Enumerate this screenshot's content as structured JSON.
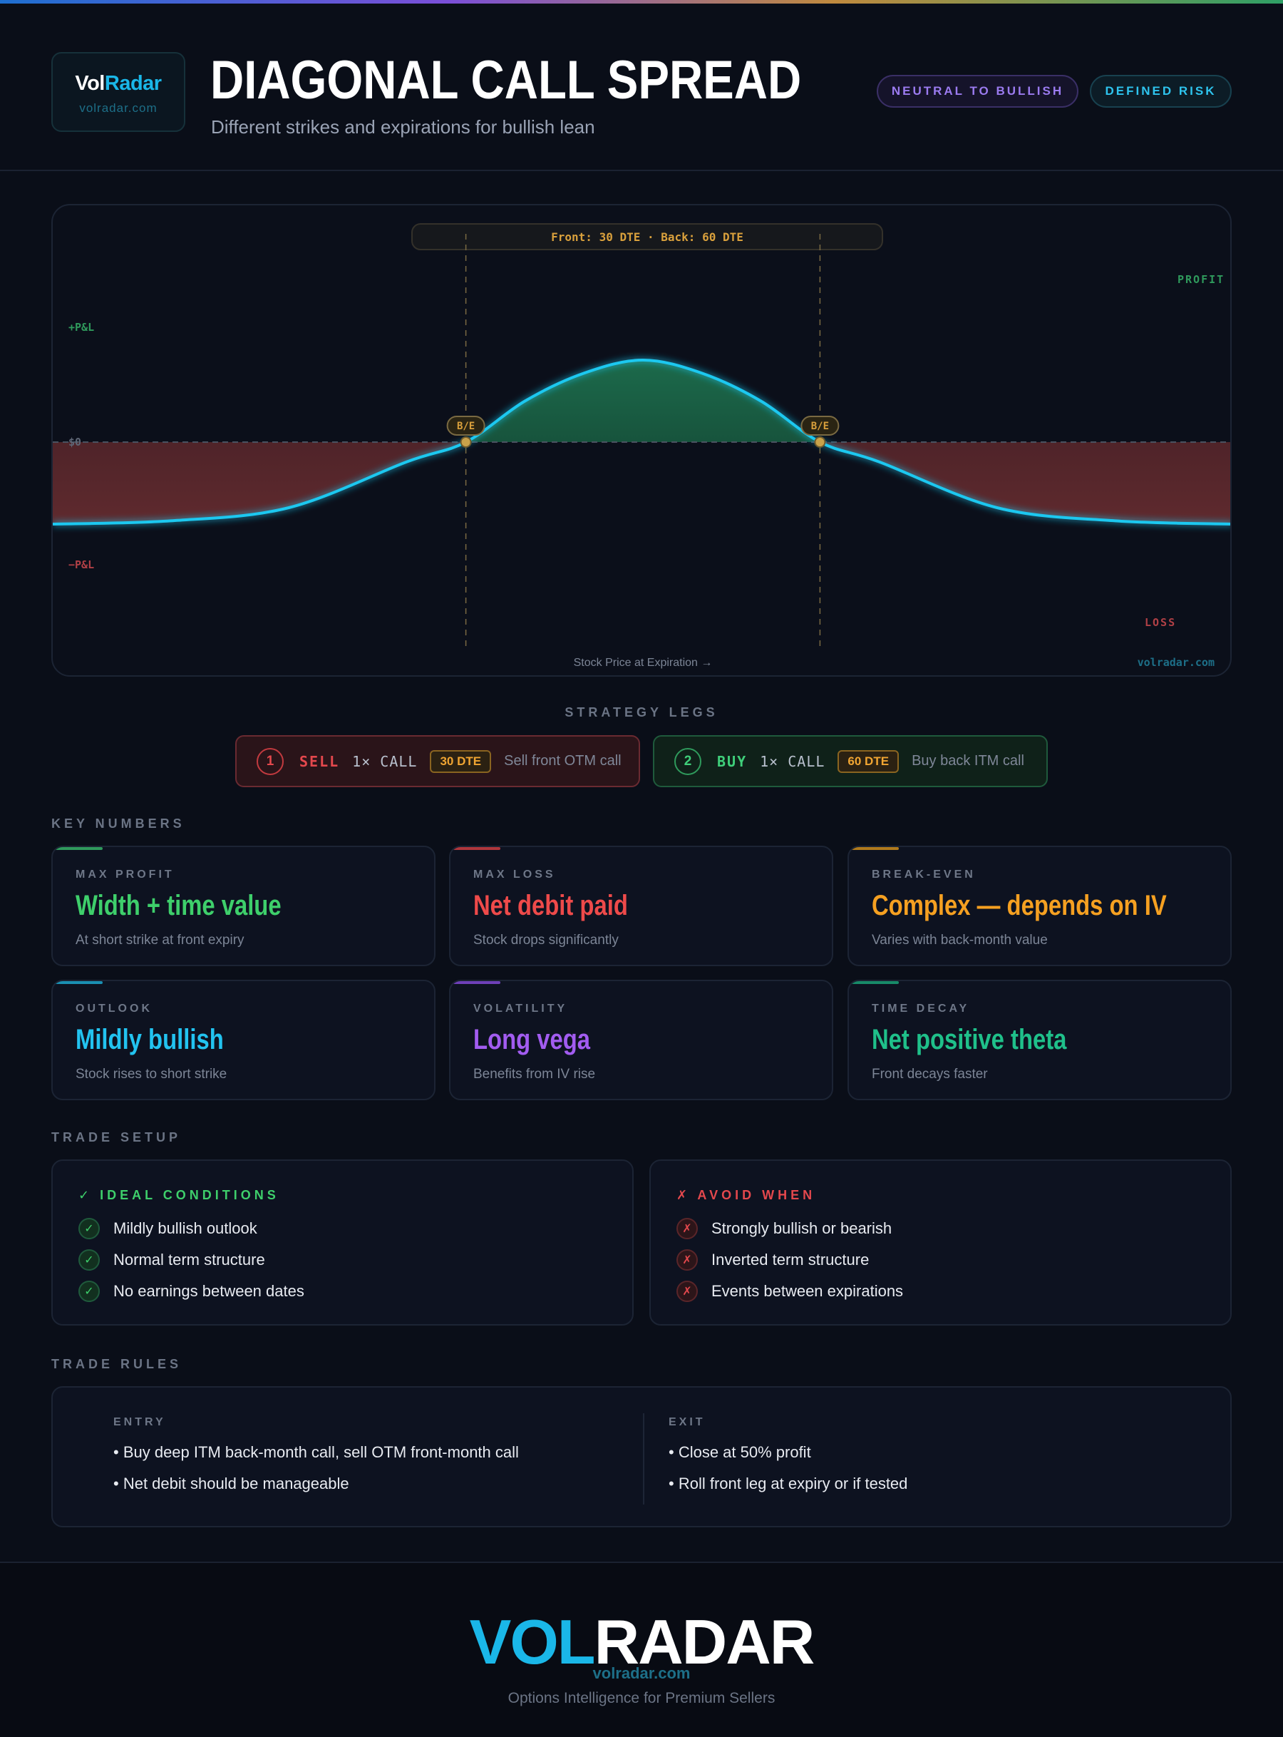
{
  "brand": {
    "logo_part1": "Vol",
    "logo_part2": "Radar",
    "url": "volradar.com"
  },
  "header": {
    "title": "DIAGONAL CALL SPREAD",
    "subtitle": "Different strikes and expirations for bullish lean",
    "tags": [
      "NEUTRAL TO BULLISH",
      "DEFINED RISK"
    ]
  },
  "chart": {
    "expiry_label": "Front: 30 DTE · Back: 60 DTE",
    "y_plus": "+P&L",
    "y_zero": "$0",
    "y_minus": "−P&L",
    "profit": "PROFIT",
    "loss": "LOSS",
    "breakeven_marker": "B/E",
    "x_axis": "Stock Price at Expiration →",
    "watermark": "volradar.com"
  },
  "chart_data": {
    "type": "area",
    "shape": "bell-shaped P&L curve peaking near the short strike",
    "x": [
      0.0,
      0.1,
      0.2,
      0.3,
      0.35,
      0.4,
      0.45,
      0.5,
      0.55,
      0.6,
      0.65,
      0.7,
      0.8,
      0.9,
      1.0
    ],
    "y": [
      -0.5,
      -0.48,
      -0.4,
      -0.12,
      0.0,
      0.25,
      0.42,
      0.5,
      0.42,
      0.25,
      0.0,
      -0.12,
      -0.4,
      -0.48,
      -0.5
    ],
    "breakevens": [
      0.35,
      0.65
    ],
    "zero_line": 0,
    "colors": {
      "curve": "#1ec8f0",
      "profit_fill": "#1b5a42",
      "loss_fill": "#5a2529",
      "breakeven": "#c9a24a"
    }
  },
  "legs_section": "STRATEGY LEGS",
  "legs": [
    {
      "num": "1",
      "action": "SELL",
      "type": "1× CALL",
      "dte": "30 DTE",
      "desc": "Sell front OTM call"
    },
    {
      "num": "2",
      "action": "BUY",
      "type": "1× CALL",
      "dte": "60 DTE",
      "desc": "Buy back ITM call"
    }
  ],
  "key_section": "KEY NUMBERS",
  "key_numbers": [
    {
      "label": "MAX PROFIT",
      "value": "Width + time value",
      "sub": "At short strike at front expiry",
      "color": "#3ecf6b"
    },
    {
      "label": "MAX LOSS",
      "value": "Net debit paid",
      "sub": "Stock drops significantly",
      "color": "#ee4a4a"
    },
    {
      "label": "BREAK-EVEN",
      "value": "Complex — depends on IV",
      "sub": "Varies with back-month value",
      "color": "#f5a021"
    },
    {
      "label": "OUTLOOK",
      "value": "Mildly bullish",
      "sub": "Stock rises to short strike",
      "color": "#22c3f0"
    },
    {
      "label": "VOLATILITY",
      "value": "Long vega",
      "sub": "Benefits from IV rise",
      "color": "#a25cf0"
    },
    {
      "label": "TIME DECAY",
      "value": "Net positive theta",
      "sub": "Front decays faster",
      "color": "#1fc08a"
    }
  ],
  "setup_section": "TRADE SETUP",
  "ideal": {
    "title": "✓ IDEAL CONDITIONS",
    "items": [
      "Mildly bullish outlook",
      "Normal term structure",
      "No earnings between dates"
    ]
  },
  "avoid": {
    "title": "✗ AVOID WHEN",
    "items": [
      "Strongly bullish or bearish",
      "Inverted term structure",
      "Events between expirations"
    ]
  },
  "rules_section": "TRADE RULES",
  "rules": {
    "entry_title": "ENTRY",
    "entry": [
      "• Buy deep ITM back-month call, sell OTM front-month call",
      "• Net debit should be manageable"
    ],
    "exit_title": "EXIT",
    "exit": [
      "• Close at 50% profit",
      "• Roll front leg at expiry or if tested"
    ]
  },
  "footer": {
    "logo_part1": "VOL",
    "logo_part2": "RADAR",
    "url": "volradar.com",
    "tagline": "Options Intelligence for Premium Sellers"
  }
}
